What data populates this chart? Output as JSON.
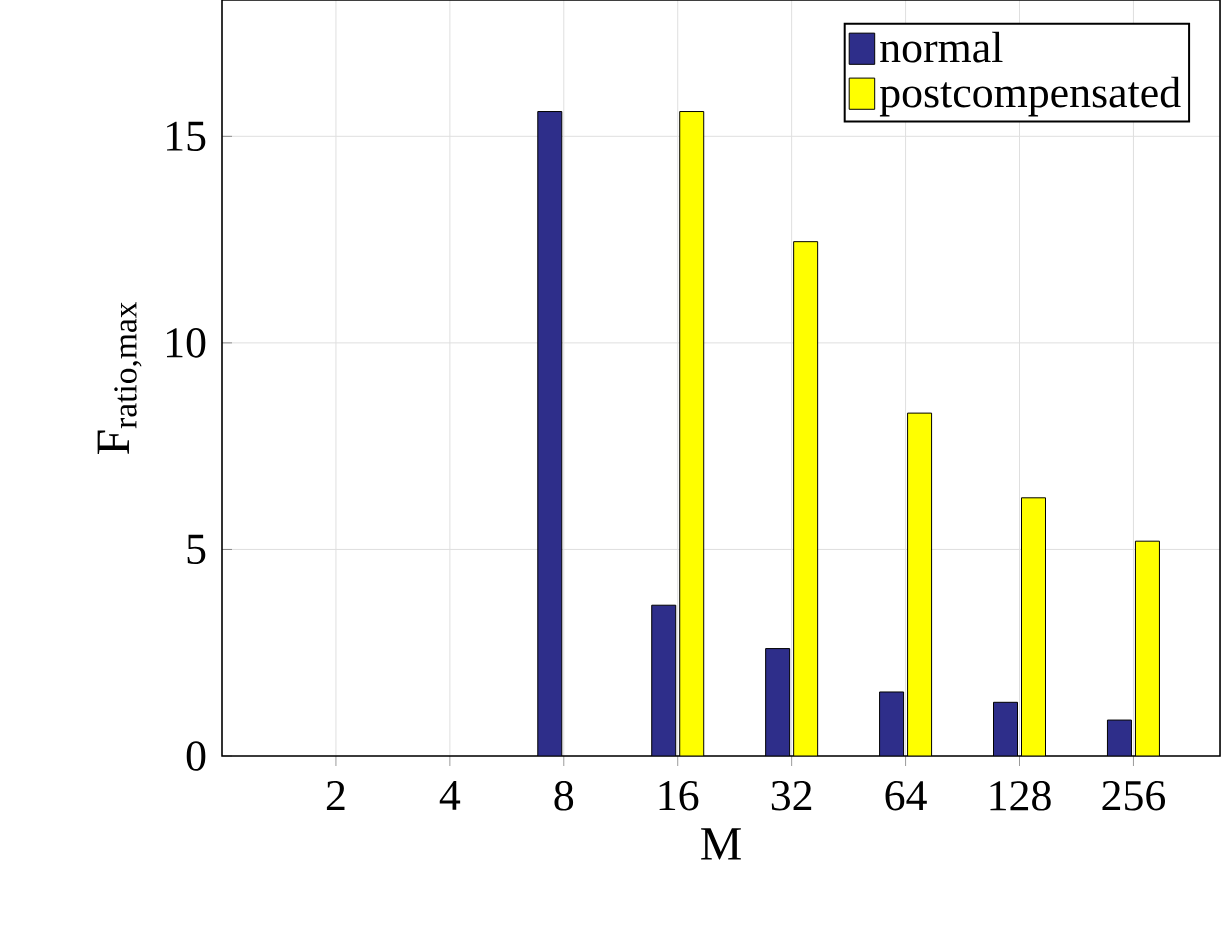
{
  "chart_data": {
    "type": "bar",
    "xlabel": "M",
    "ylabel": "F$_{ratio,max}$",
    "categories": [
      "2",
      "4",
      "8",
      "16",
      "32",
      "64",
      "128",
      "256"
    ],
    "series": [
      {
        "name": "normal",
        "color": "#2e2e8a",
        "values": [
          null,
          null,
          15.6,
          3.65,
          2.6,
          1.55,
          1.3,
          0.87
        ]
      },
      {
        "name": "postcompensated",
        "color": "#ffff00",
        "values": [
          null,
          null,
          null,
          15.6,
          12.45,
          8.3,
          6.25,
          5.2
        ]
      }
    ],
    "ylim": [
      0,
      18.3
    ],
    "yticks": [
      0,
      5,
      10,
      15
    ],
    "grid": true,
    "legend": "top right"
  }
}
